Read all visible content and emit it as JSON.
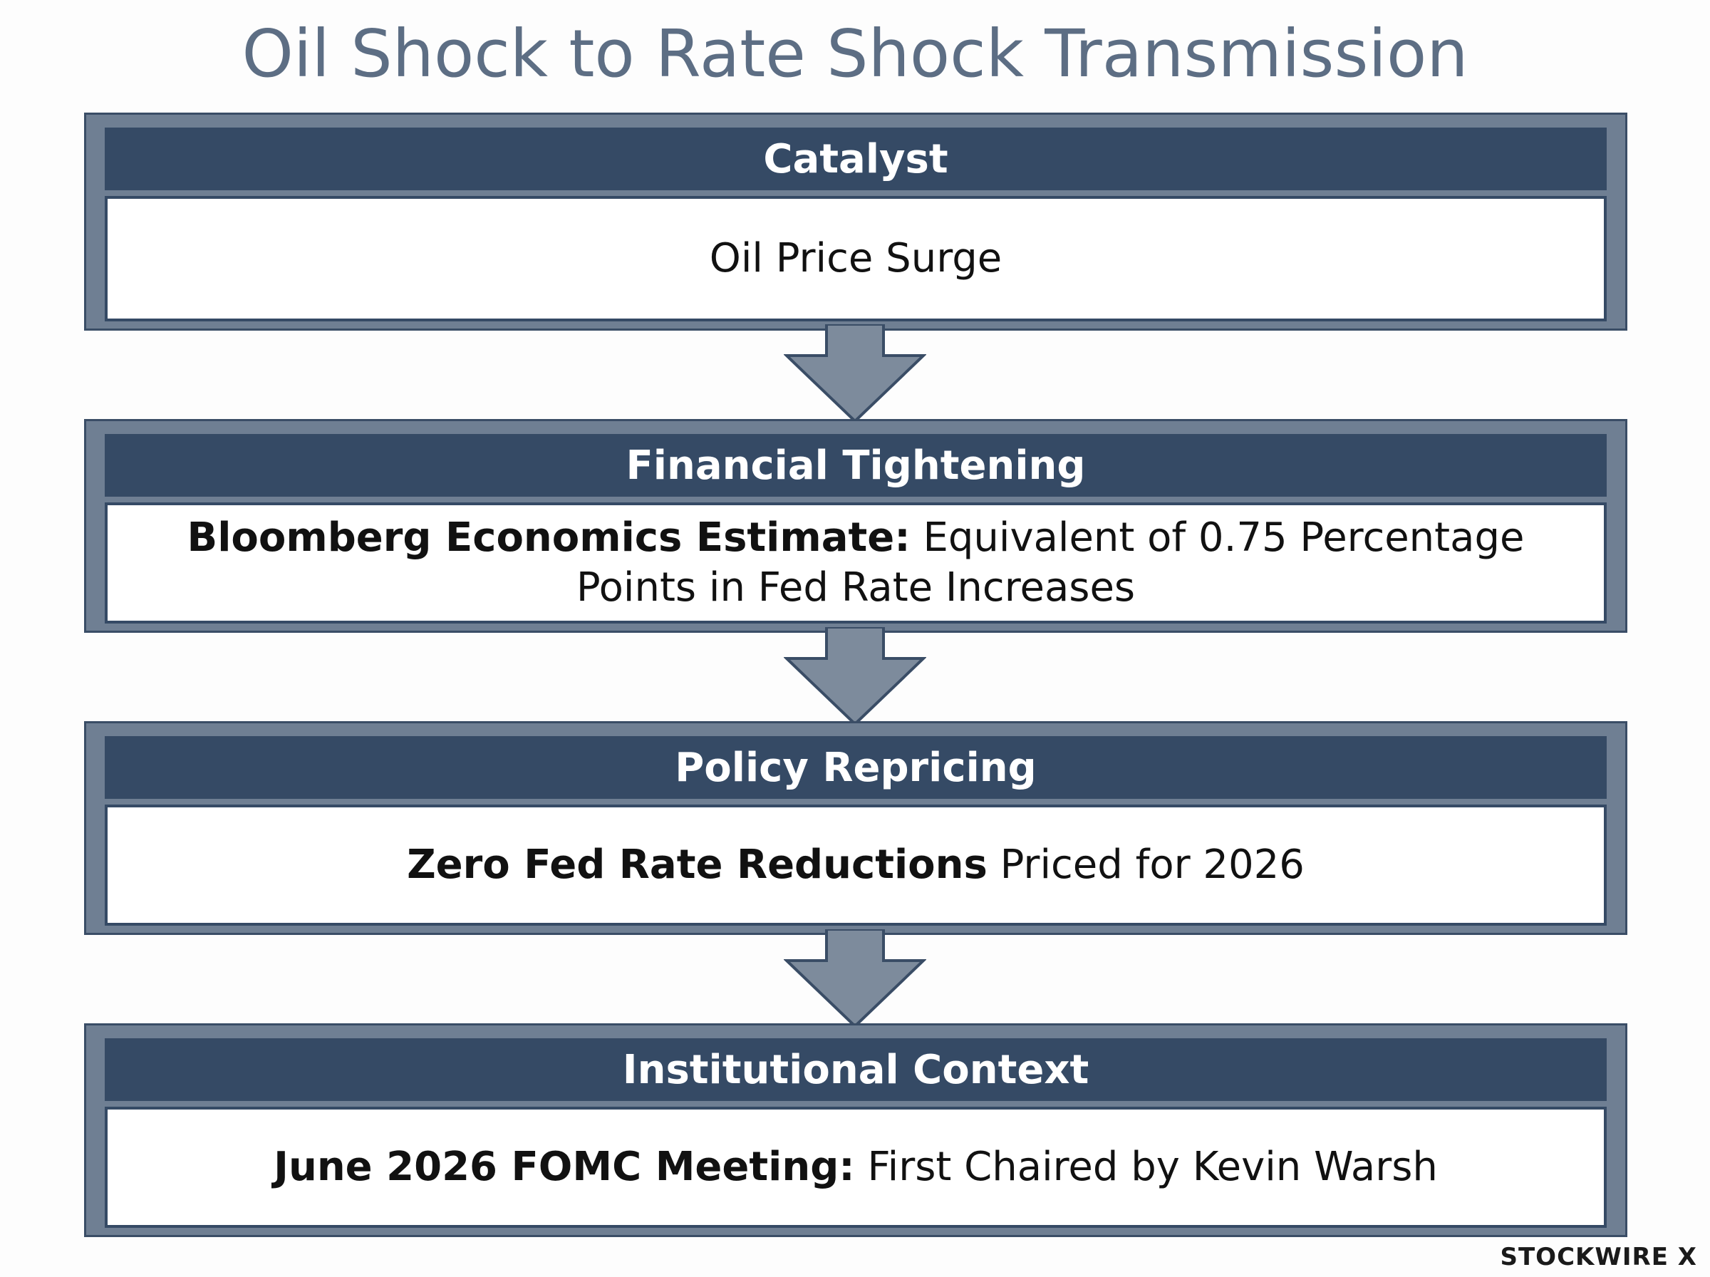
{
  "title": "Oil Shock to Rate Shock Transmission",
  "stages": [
    {
      "header": "Catalyst",
      "body_bold": "",
      "body_text": "Oil Price Surge"
    },
    {
      "header": "Financial Tightening",
      "body_bold": "Bloomberg Economics Estimate:",
      "body_text": " Equivalent of 0.75 Percentage Points in Fed Rate Increases"
    },
    {
      "header": "Policy Repricing",
      "body_bold": "Zero Fed Rate Reductions",
      "body_text": " Priced for 2026"
    },
    {
      "header": "Institutional Context",
      "body_bold": "June 2026 FOMC Meeting:",
      "body_text": " First Chaired by Kevin Warsh"
    }
  ],
  "footer": {
    "logo": "STOCKWIRE X"
  },
  "colors": {
    "frame": "#6f7f93",
    "header": "#354a65",
    "title": "#5d6e84",
    "arrow": "#7d8b9c"
  },
  "icons": {
    "arrow": "down-arrow-icon"
  }
}
